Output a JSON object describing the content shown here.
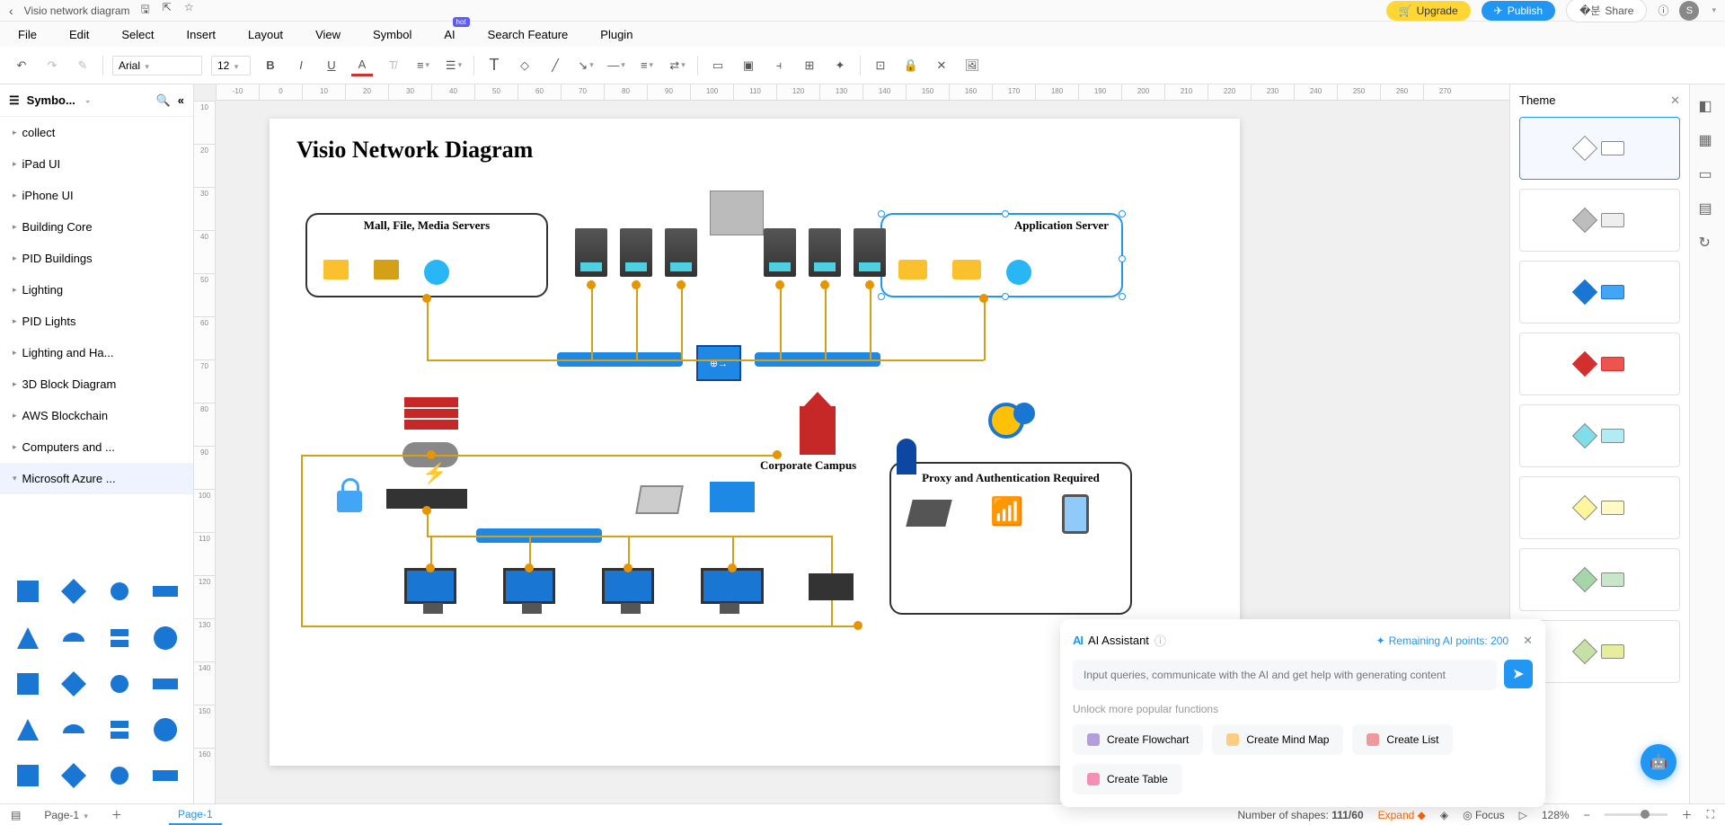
{
  "titlebar": {
    "doc_name": "Visio network diagram",
    "upgrade": "Upgrade",
    "publish": "Publish",
    "share": "Share",
    "avatar_initial": "S"
  },
  "menubar": [
    "File",
    "Edit",
    "Select",
    "Insert",
    "Layout",
    "View",
    "Symbol",
    "AI",
    "Search Feature",
    "Plugin"
  ],
  "hot_badge_on": "AI",
  "toolbar": {
    "font": "Arial",
    "font_size": "12"
  },
  "sidebar": {
    "title": "Symbo...",
    "items": [
      "collect",
      "iPad UI",
      "iPhone UI",
      "Building Core",
      "PID Buildings",
      "Lighting",
      "PID Lights",
      "Lighting and Ha...",
      "3D Block Diagram",
      "AWS Blockchain",
      "Computers and ...",
      "Microsoft Azure ..."
    ],
    "active_index": 11
  },
  "ruler_h": [
    "-10",
    "0",
    "10",
    "20",
    "30",
    "40",
    "50",
    "60",
    "70",
    "80",
    "90",
    "100",
    "110",
    "120",
    "130",
    "140",
    "150",
    "160",
    "170",
    "180",
    "190",
    "200",
    "210",
    "220",
    "230",
    "240",
    "250",
    "260",
    "270"
  ],
  "ruler_v": [
    "10",
    "20",
    "30",
    "40",
    "50",
    "60",
    "70",
    "80",
    "90",
    "100",
    "110",
    "120",
    "130",
    "140",
    "150",
    "160"
  ],
  "diagram": {
    "title": "Visio Network Diagram",
    "box_mail_label": "Mall, File, Media Servers",
    "box_app_label": "Application Server",
    "label_campus": "Corporate Campus",
    "label_proxy": "Proxy and Authentication Required",
    "colors": {
      "wire": "#d4a017",
      "bus": "#1e88e5",
      "box_border": "#333333",
      "sel_border": "#2196f3",
      "firewall": "#c62828",
      "building": "#c62828",
      "pc": "#1976d2",
      "lock": "#42a5f5",
      "globe_fill": "#ffc107",
      "globe_ring": "#1976d2"
    },
    "servers_group1_x": [
      340,
      390,
      440
    ],
    "servers_group2_x": [
      550,
      600,
      650
    ]
  },
  "ai_panel": {
    "title": "AI Assistant",
    "points_label": "Remaining AI points: 200",
    "placeholder": "Input queries, communicate with the AI and get help with generating content",
    "unlock": "Unlock more popular functions",
    "actions": [
      {
        "label": "Create Flowchart",
        "color": "#b39ddb"
      },
      {
        "label": "Create Mind Map",
        "color": "#ffcc80"
      },
      {
        "label": "Create List",
        "color": "#ef9a9a"
      },
      {
        "label": "Create Table",
        "color": "#f48fb1"
      }
    ]
  },
  "theme": {
    "title": "Theme",
    "items": [
      {
        "diamond": "#ffffff",
        "box": "#fff",
        "border": "#888"
      },
      {
        "diamond": "#bdbdbd",
        "box": "#eee",
        "border": "#888"
      },
      {
        "diamond": "#1976d2",
        "box": "#42a5f5",
        "border": "#1976d2"
      },
      {
        "diamond": "#d32f2f",
        "box": "#ef5350",
        "border": "#d32f2f"
      },
      {
        "diamond": "#80deea",
        "box": "#b2ebf2",
        "border": "#888"
      },
      {
        "diamond": "#fff59d",
        "box": "#fff9c4",
        "border": "#888"
      },
      {
        "diamond": "#a5d6a7",
        "box": "#c8e6c9",
        "border": "#888"
      },
      {
        "diamond": "#c5e1a5",
        "box": "#e6ee9c",
        "border": "#888"
      }
    ],
    "active_index": 0
  },
  "statusbar": {
    "page_label": "Page-1",
    "tab": "Page-1",
    "shape_label": "Number of shapes:",
    "shape_count": "111/60",
    "expand": "Expand",
    "focus": "Focus",
    "zoom": "128%"
  }
}
